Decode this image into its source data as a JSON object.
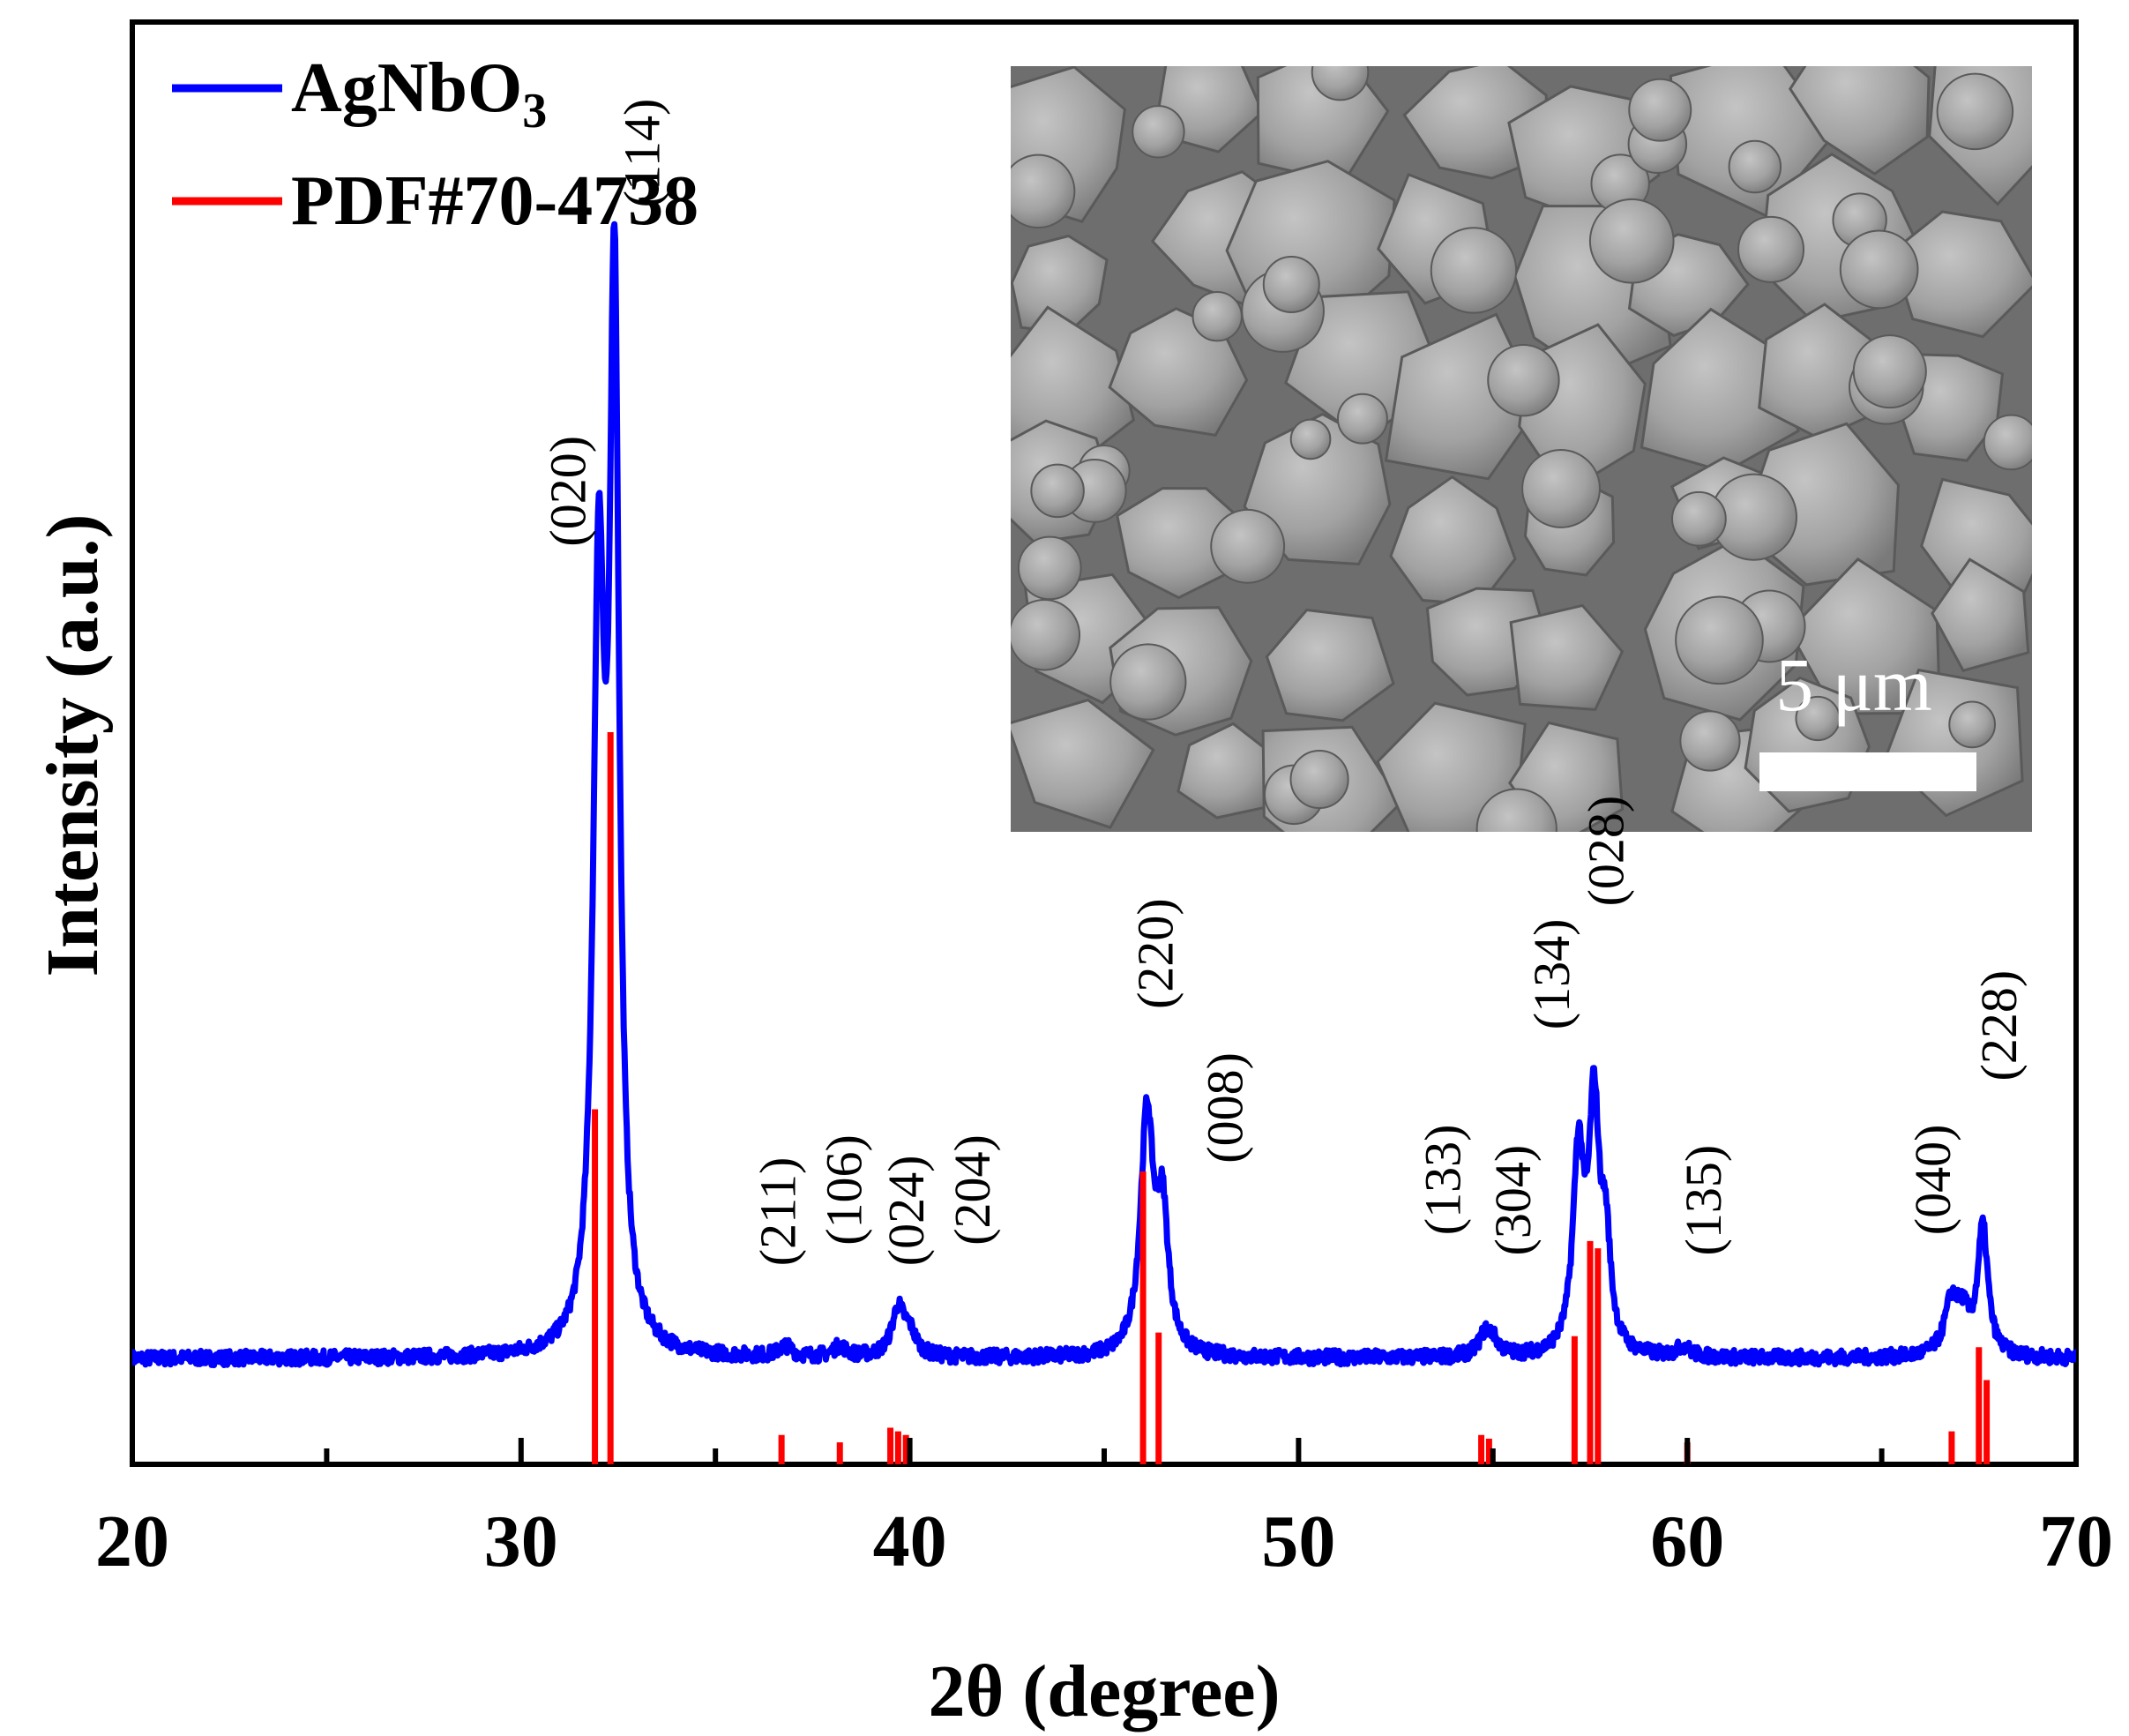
{
  "chart_data": {
    "type": "line",
    "title": "",
    "xlabel": "2θ (degree)",
    "ylabel": "Intensity (a.u.)",
    "xlim": [
      20,
      70
    ],
    "x_ticks": [
      "20",
      "30",
      "40",
      "50",
      "60",
      "70"
    ],
    "y_ticks_shown": false,
    "legend": {
      "placement": "top-left",
      "entries": [
        {
          "name": "AgNbO",
          "sub": "3",
          "color": "#0000ff"
        },
        {
          "name": "PDF#70-4738",
          "sub": "",
          "color": "#ff0000"
        }
      ]
    },
    "series": [
      {
        "name": "AgNbO3",
        "type": "line",
        "color": "#0000ff",
        "baseline": 0.0,
        "peaks": [
          {
            "x": 32.0,
            "height": 0.72,
            "width": 0.17
          },
          {
            "x": 32.4,
            "height": 1.0,
            "width": 0.15
          },
          {
            "x": 36.8,
            "height": 0.01,
            "width": 0.2
          },
          {
            "x": 38.2,
            "height": 0.01,
            "width": 0.2
          },
          {
            "x": 39.7,
            "height": 0.045,
            "width": 0.2
          },
          {
            "x": 40.0,
            "height": 0.02,
            "width": 0.2
          },
          {
            "x": 46.1,
            "height": 0.23,
            "width": 0.2
          },
          {
            "x": 46.5,
            "height": 0.13,
            "width": 0.18
          },
          {
            "x": 54.8,
            "height": 0.02,
            "width": 0.2
          },
          {
            "x": 55.0,
            "height": 0.012,
            "width": 0.2
          },
          {
            "x": 57.2,
            "height": 0.19,
            "width": 0.17
          },
          {
            "x": 57.6,
            "height": 0.23,
            "width": 0.16
          },
          {
            "x": 57.9,
            "height": 0.1,
            "width": 0.15
          },
          {
            "x": 59.9,
            "height": 0.01,
            "width": 0.2
          },
          {
            "x": 66.8,
            "height": 0.052,
            "width": 0.22
          },
          {
            "x": 67.1,
            "height": 0.03,
            "width": 0.18
          },
          {
            "x": 67.6,
            "height": 0.125,
            "width": 0.16
          }
        ]
      },
      {
        "name": "PDF#70-4738",
        "type": "stick",
        "color": "#ff0000",
        "sticks": [
          {
            "x": 31.9,
            "intensity": 0.485
          },
          {
            "x": 32.3,
            "intensity": 1.0
          },
          {
            "x": 36.7,
            "intensity": 0.04
          },
          {
            "x": 38.2,
            "intensity": 0.03
          },
          {
            "x": 39.5,
            "intensity": 0.05
          },
          {
            "x": 39.7,
            "intensity": 0.045
          },
          {
            "x": 39.9,
            "intensity": 0.04
          },
          {
            "x": 46.0,
            "intensity": 0.4
          },
          {
            "x": 46.4,
            "intensity": 0.18
          },
          {
            "x": 54.7,
            "intensity": 0.04
          },
          {
            "x": 54.9,
            "intensity": 0.035
          },
          {
            "x": 57.1,
            "intensity": 0.175
          },
          {
            "x": 57.5,
            "intensity": 0.305
          },
          {
            "x": 57.7,
            "intensity": 0.295
          },
          {
            "x": 60.0,
            "intensity": 0.03
          },
          {
            "x": 66.8,
            "intensity": 0.045
          },
          {
            "x": 67.5,
            "intensity": 0.16
          },
          {
            "x": 67.7,
            "intensity": 0.115
          }
        ]
      }
    ],
    "annotations": [
      {
        "text": "(020)",
        "x": 31.2,
        "level": 0.79
      },
      {
        "text": "(114)",
        "x": 33.1,
        "level": 1.12
      },
      {
        "text": "(211)",
        "x": 36.6,
        "level": 0.09
      },
      {
        "text": "(106)",
        "x": 38.3,
        "level": 0.11
      },
      {
        "text": "(024)",
        "x": 39.9,
        "level": 0.09
      },
      {
        "text": "(204)",
        "x": 41.6,
        "level": 0.11
      },
      {
        "text": "(220)",
        "x": 46.3,
        "level": 0.34
      },
      {
        "text": "(008)",
        "x": 48.1,
        "level": 0.19
      },
      {
        "text": "(133)",
        "x": 53.7,
        "level": 0.12
      },
      {
        "text": "(304)",
        "x": 55.5,
        "level": 0.1
      },
      {
        "text": "(134)",
        "x": 56.5,
        "level": 0.32
      },
      {
        "text": "(028)",
        "x": 57.9,
        "level": 0.44
      },
      {
        "text": "(135)",
        "x": 60.4,
        "level": 0.1
      },
      {
        "text": "(040)",
        "x": 66.3,
        "level": 0.12
      },
      {
        "text": "(228)",
        "x": 68.0,
        "level": 0.27
      }
    ]
  },
  "inset": {
    "description_label": "SEM micrograph",
    "scale_bar_label": "5 μm"
  }
}
